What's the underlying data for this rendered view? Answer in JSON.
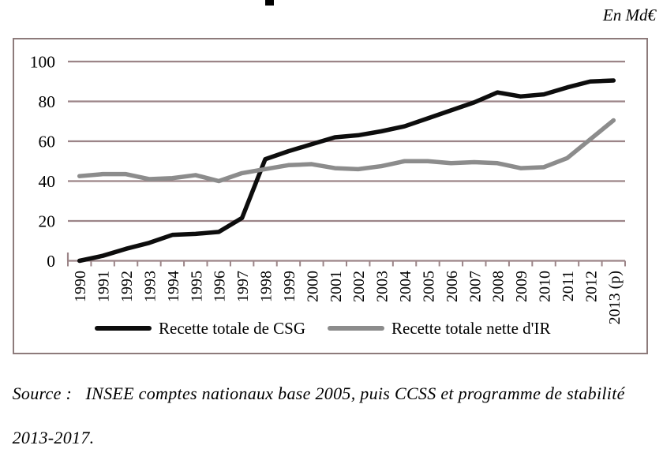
{
  "page": {
    "unit_label": "En Md€"
  },
  "source_note": {
    "line1": "Source :   INSEE comptes nationaux base 2005, puis CCSS et programme de stabilité",
    "line2": "2013-2017."
  },
  "colors": {
    "grid": "#9c8588",
    "frame_border": "#8d7b7b",
    "csg_line": "#0d0d0d",
    "ir_line": "#8c8c8c",
    "text": "#000000"
  },
  "chart_data": {
    "type": "line",
    "title": "",
    "unit": "En Md€",
    "xlabel": "",
    "ylabel": "",
    "ylim": [
      0,
      100
    ],
    "yticks": [
      0,
      20,
      40,
      60,
      80,
      100
    ],
    "grid": "horizontal",
    "legend_position": "bottom",
    "categories": [
      "1990",
      "1991",
      "1992",
      "1993",
      "1994",
      "1995",
      "1996",
      "1997",
      "1998",
      "1999",
      "2000",
      "2001",
      "2002",
      "2003",
      "2004",
      "2005",
      "2006",
      "2007",
      "2008",
      "2009",
      "2010",
      "2011",
      "2012",
      "2013 (p)"
    ],
    "series": [
      {
        "name": "Recette totale de CSG",
        "color": "#0d0d0d",
        "values": [
          0,
          2.5,
          6,
          9,
          13,
          13.5,
          14.5,
          21.5,
          51,
          55,
          58.5,
          62,
          63,
          65,
          67.5,
          71.5,
          75.5,
          79.5,
          84.5,
          82.5,
          83.5,
          87,
          90,
          90.5
        ]
      },
      {
        "name": "Recette totale nette d'IR",
        "color": "#8c8c8c",
        "values": [
          42.5,
          43.5,
          43.5,
          41,
          41.5,
          43,
          40,
          44,
          46,
          48,
          48.5,
          46.5,
          46,
          47.5,
          50,
          50,
          49,
          49.5,
          49,
          46.5,
          47,
          51.5,
          61,
          70.5
        ]
      }
    ]
  }
}
